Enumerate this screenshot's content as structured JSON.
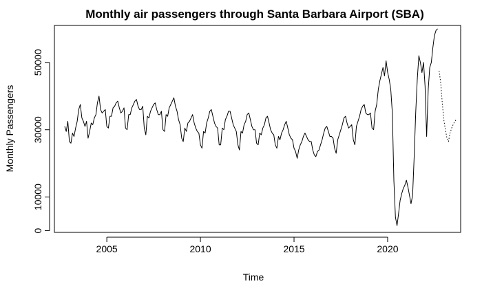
{
  "chart_data": {
    "type": "line",
    "title": "Monthly air passengers through Santa Barbara Airport (SBA)",
    "xlabel": "Time",
    "ylabel": "Monthly Passengers",
    "xlim": [
      2002.2,
      2023.9
    ],
    "ylim": [
      -500,
      61000
    ],
    "xticks": [
      2005,
      2010,
      2015,
      2020
    ],
    "xtick_labels": [
      "2005",
      "2010",
      "2015",
      "2020"
    ],
    "yticks": [
      0,
      10000,
      30000,
      50000
    ],
    "ytick_labels": [
      "0",
      "10000",
      "30000",
      "50000"
    ],
    "grid": false,
    "legend": "none",
    "series": [
      {
        "style": "solid",
        "x": [
          2002.75,
          2002.833,
          2002.917,
          2003.0,
          2003.083,
          2003.167,
          2003.25,
          2003.333,
          2003.417,
          2003.5,
          2003.583,
          2003.667,
          2003.75,
          2003.833,
          2003.917,
          2004.0,
          2004.083,
          2004.167,
          2004.25,
          2004.333,
          2004.417,
          2004.5,
          2004.583,
          2004.667,
          2004.75,
          2004.833,
          2004.917,
          2005.0,
          2005.083,
          2005.167,
          2005.25,
          2005.333,
          2005.417,
          2005.5,
          2005.583,
          2005.667,
          2005.75,
          2005.833,
          2005.917,
          2006.0,
          2006.083,
          2006.167,
          2006.25,
          2006.333,
          2006.417,
          2006.5,
          2006.583,
          2006.667,
          2006.75,
          2006.833,
          2006.917,
          2007.0,
          2007.083,
          2007.167,
          2007.25,
          2007.333,
          2007.417,
          2007.5,
          2007.583,
          2007.667,
          2007.75,
          2007.833,
          2007.917,
          2008.0,
          2008.083,
          2008.167,
          2008.25,
          2008.333,
          2008.417,
          2008.5,
          2008.583,
          2008.667,
          2008.75,
          2008.833,
          2008.917,
          2009.0,
          2009.083,
          2009.167,
          2009.25,
          2009.333,
          2009.417,
          2009.5,
          2009.583,
          2009.667,
          2009.75,
          2009.833,
          2009.917,
          2010.0,
          2010.083,
          2010.167,
          2010.25,
          2010.333,
          2010.417,
          2010.5,
          2010.583,
          2010.667,
          2010.75,
          2010.833,
          2010.917,
          2011.0,
          2011.083,
          2011.167,
          2011.25,
          2011.333,
          2011.417,
          2011.5,
          2011.583,
          2011.667,
          2011.75,
          2011.833,
          2011.917,
          2012.0,
          2012.083,
          2012.167,
          2012.25,
          2012.333,
          2012.417,
          2012.5,
          2012.583,
          2012.667,
          2012.75,
          2012.833,
          2012.917,
          2013.0,
          2013.083,
          2013.167,
          2013.25,
          2013.333,
          2013.417,
          2013.5,
          2013.583,
          2013.667,
          2013.75,
          2013.833,
          2013.917,
          2014.0,
          2014.083,
          2014.167,
          2014.25,
          2014.333,
          2014.417,
          2014.5,
          2014.583,
          2014.667,
          2014.75,
          2014.833,
          2014.917,
          2015.0,
          2015.083,
          2015.167,
          2015.25,
          2015.333,
          2015.417,
          2015.5,
          2015.583,
          2015.667,
          2015.75,
          2015.833,
          2015.917,
          2016.0,
          2016.083,
          2016.167,
          2016.25,
          2016.333,
          2016.417,
          2016.5,
          2016.583,
          2016.667,
          2016.75,
          2016.833,
          2016.917,
          2017.0,
          2017.083,
          2017.167,
          2017.25,
          2017.333,
          2017.417,
          2017.5,
          2017.583,
          2017.667,
          2017.75,
          2017.833,
          2017.917,
          2018.0,
          2018.083,
          2018.167,
          2018.25,
          2018.333,
          2018.417,
          2018.5,
          2018.583,
          2018.667,
          2018.75,
          2018.833,
          2018.917,
          2019.0,
          2019.083,
          2019.167,
          2019.25,
          2019.333,
          2019.417,
          2019.5,
          2019.583,
          2019.667,
          2019.75,
          2019.833,
          2019.917,
          2020.0,
          2020.083,
          2020.167,
          2020.25,
          2020.333,
          2020.417,
          2020.5,
          2020.583,
          2020.667,
          2020.75,
          2020.833,
          2020.917,
          2021.0,
          2021.083,
          2021.167,
          2021.25,
          2021.333,
          2021.417,
          2021.5,
          2021.583,
          2021.667,
          2021.75,
          2021.833,
          2021.917,
          2022.0,
          2022.083,
          2022.167,
          2022.25,
          2022.333,
          2022.417,
          2022.5,
          2022.583,
          2022.667
        ],
        "y": [
          31000,
          29500,
          32500,
          26500,
          26000,
          29000,
          28000,
          30500,
          32500,
          36000,
          37500,
          33500,
          32500,
          31000,
          32500,
          27500,
          29500,
          32000,
          31500,
          33500,
          34500,
          38000,
          40000,
          36000,
          35000,
          35500,
          36000,
          31000,
          30500,
          34000,
          34000,
          36500,
          37000,
          38000,
          38500,
          36500,
          35000,
          35500,
          36500,
          30500,
          30000,
          34500,
          34500,
          36500,
          37500,
          38500,
          39000,
          37000,
          36000,
          36000,
          37000,
          30500,
          28500,
          34000,
          33500,
          35500,
          36500,
          37500,
          38000,
          36000,
          34500,
          34500,
          35500,
          30000,
          29500,
          34500,
          34000,
          36500,
          37500,
          38500,
          39500,
          37000,
          35500,
          33000,
          31500,
          27500,
          26500,
          30500,
          29500,
          32000,
          32500,
          33500,
          34500,
          32000,
          30500,
          29500,
          29000,
          25500,
          24500,
          29500,
          29000,
          32000,
          33500,
          35500,
          36000,
          34000,
          32000,
          31000,
          30500,
          25500,
          25500,
          30500,
          30000,
          33000,
          34000,
          35500,
          35500,
          33500,
          31500,
          30500,
          29500,
          25500,
          24000,
          29500,
          29000,
          31500,
          32500,
          34500,
          35000,
          33000,
          31000,
          30000,
          30000,
          26000,
          25500,
          29000,
          28500,
          30500,
          31500,
          33500,
          34000,
          32000,
          30000,
          29000,
          28500,
          25500,
          24500,
          28000,
          27000,
          29000,
          30000,
          31500,
          32500,
          30500,
          28500,
          27500,
          27000,
          24500,
          23500,
          21500,
          24000,
          25500,
          26500,
          28000,
          29000,
          28000,
          27000,
          26500,
          26500,
          24000,
          22500,
          22000,
          23500,
          24000,
          25500,
          27000,
          29000,
          30500,
          31000,
          29500,
          28000,
          28000,
          27500,
          24500,
          23000,
          27000,
          28500,
          30000,
          31500,
          33500,
          34000,
          32000,
          30500,
          31000,
          31500,
          27000,
          25500,
          31000,
          32500,
          34000,
          36000,
          37000,
          37500,
          35000,
          34500,
          34500,
          35000,
          30500,
          30000,
          35500,
          37500,
          42000,
          44500,
          46500,
          48500,
          46000,
          50500,
          47000,
          45000,
          42000,
          35000,
          15000,
          4000,
          1500,
          5000,
          9000,
          11000,
          12500,
          13500,
          15000,
          13000,
          10500,
          8000,
          10500,
          22000,
          35000,
          45000,
          52000,
          50000,
          47000,
          50000,
          43000,
          28000,
          42000,
          48500,
          50000,
          54500,
          58000,
          59500,
          60000
        ]
      },
      {
        "style": "dotted",
        "x": [
          2022.75,
          2022.833,
          2022.917,
          2023.0,
          2023.083,
          2023.167,
          2023.25,
          2023.333,
          2023.417,
          2023.5,
          2023.583,
          2023.667
        ],
        "y": [
          47500,
          44000,
          38000,
          33000,
          30000,
          27500,
          26500,
          29000,
          30500,
          31500,
          32500,
          33000
        ]
      }
    ]
  }
}
